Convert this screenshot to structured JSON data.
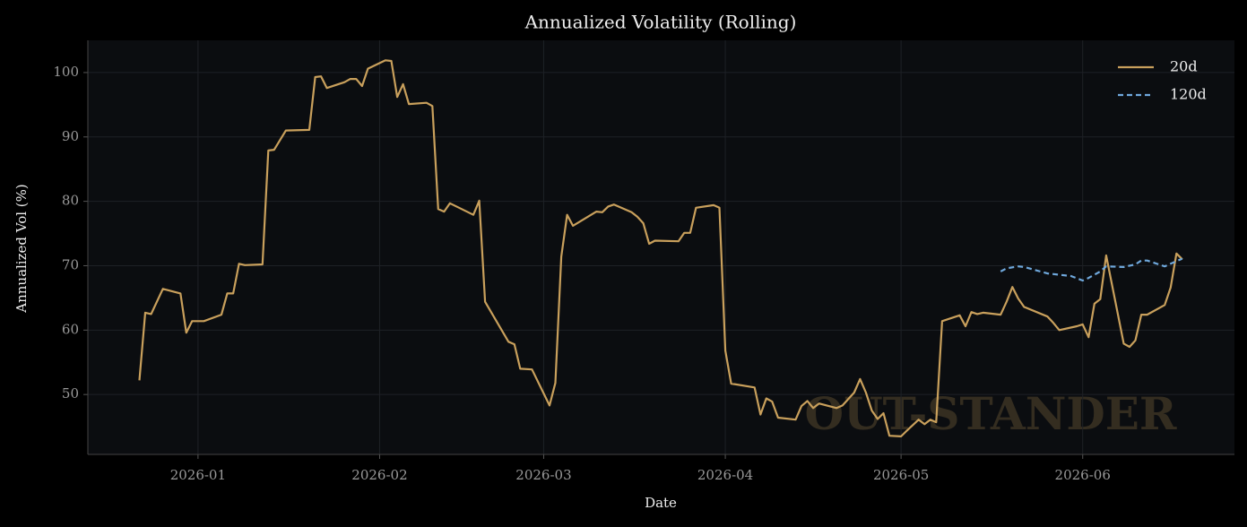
{
  "chart_data": {
    "type": "line",
    "title": "Annualized Volatility (Rolling)",
    "x_label": "Date",
    "y_label": "Annualized Vol (%)",
    "watermark": "OUT-STANDER",
    "xlim": [
      -18.8,
      176.9
    ],
    "xticks": [
      {
        "value": 0,
        "label": "2026-01"
      },
      {
        "value": 31,
        "label": "2026-02"
      },
      {
        "value": 59,
        "label": "2026-03"
      },
      {
        "value": 90,
        "label": "2026-04"
      },
      {
        "value": 120,
        "label": "2026-05"
      },
      {
        "value": 151,
        "label": "2026-06"
      }
    ],
    "ylim": [
      40.7,
      105
    ],
    "yticks": [
      50,
      60,
      70,
      80,
      90,
      100
    ],
    "grid": true,
    "legend": "upper right",
    "series": [
      {
        "name": "20d",
        "color": "#c9a05c",
        "linestyle": "solid",
        "x": [
          -10,
          -9,
          -8,
          -6,
          -3,
          -2,
          -1,
          1,
          4,
          5,
          6,
          7,
          8,
          11,
          12,
          13,
          15,
          19,
          20,
          21,
          22,
          25,
          26,
          27,
          28,
          29,
          32,
          33,
          34,
          35,
          36,
          39,
          40,
          41,
          42,
          43,
          47,
          48,
          49,
          53,
          54,
          55,
          57,
          60,
          61,
          62,
          63,
          64,
          68,
          69,
          70,
          71,
          74,
          75,
          76,
          77,
          78,
          82,
          83,
          84,
          85,
          88,
          89,
          90,
          91,
          95,
          96,
          97,
          98,
          99,
          102,
          103,
          104,
          105,
          106,
          109,
          110,
          112,
          113,
          114,
          115,
          116,
          117,
          118,
          120,
          121,
          123,
          124,
          125,
          126,
          127,
          130,
          131,
          132,
          133,
          134,
          137,
          138,
          139,
          140,
          141,
          145,
          146,
          147,
          150,
          151,
          152,
          153,
          154,
          155,
          158,
          159,
          160,
          161,
          162,
          165,
          166,
          167,
          168
        ],
        "values": [
          52.2,
          62.7,
          62.5,
          66.4,
          65.7,
          59.6,
          61.4,
          61.4,
          62.4,
          65.7,
          65.7,
          70.3,
          70.1,
          70.2,
          87.9,
          88.0,
          91.0,
          91.1,
          99.3,
          99.4,
          97.6,
          98.5,
          99.0,
          99.0,
          97.9,
          100.6,
          101.9,
          101.8,
          96.2,
          98.2,
          95.1,
          95.3,
          94.8,
          78.8,
          78.4,
          79.7,
          77.9,
          80.1,
          64.4,
          58.2,
          57.8,
          54.0,
          53.9,
          48.3,
          51.8,
          71.4,
          77.9,
          76.2,
          78.4,
          78.3,
          79.2,
          79.5,
          78.3,
          77.6,
          76.6,
          73.4,
          73.9,
          73.8,
          75.1,
          75.1,
          79.0,
          79.4,
          79.0,
          56.8,
          51.7,
          51.1,
          46.9,
          49.4,
          48.9,
          46.4,
          46.1,
          48.2,
          49.0,
          47.9,
          48.6,
          47.9,
          48.3,
          50.3,
          52.4,
          50.3,
          47.5,
          46.2,
          47.1,
          43.6,
          43.5,
          44.4,
          46.1,
          45.4,
          46.1,
          45.7,
          61.4,
          62.3,
          60.6,
          62.8,
          62.5,
          62.7,
          62.4,
          64.4,
          66.7,
          64.9,
          63.6,
          62.1,
          61.1,
          60.0,
          60.6,
          60.9,
          58.9,
          64.1,
          64.8,
          71.6,
          57.9,
          57.4,
          58.4,
          62.4,
          62.4,
          63.9,
          66.6,
          71.9,
          71.0
        ]
      },
      {
        "name": "120d",
        "color": "#6fa8dc",
        "linestyle": "dashed",
        "x": [
          137,
          138,
          140,
          141,
          145,
          146,
          149,
          151,
          152,
          154,
          155,
          158,
          160,
          161,
          162,
          165,
          167,
          168
        ],
        "values": [
          69.1,
          69.6,
          69.9,
          69.8,
          68.8,
          68.7,
          68.4,
          67.7,
          68.1,
          69.1,
          69.9,
          69.8,
          70.2,
          70.8,
          70.8,
          69.9,
          70.7,
          71.1
        ]
      }
    ]
  }
}
